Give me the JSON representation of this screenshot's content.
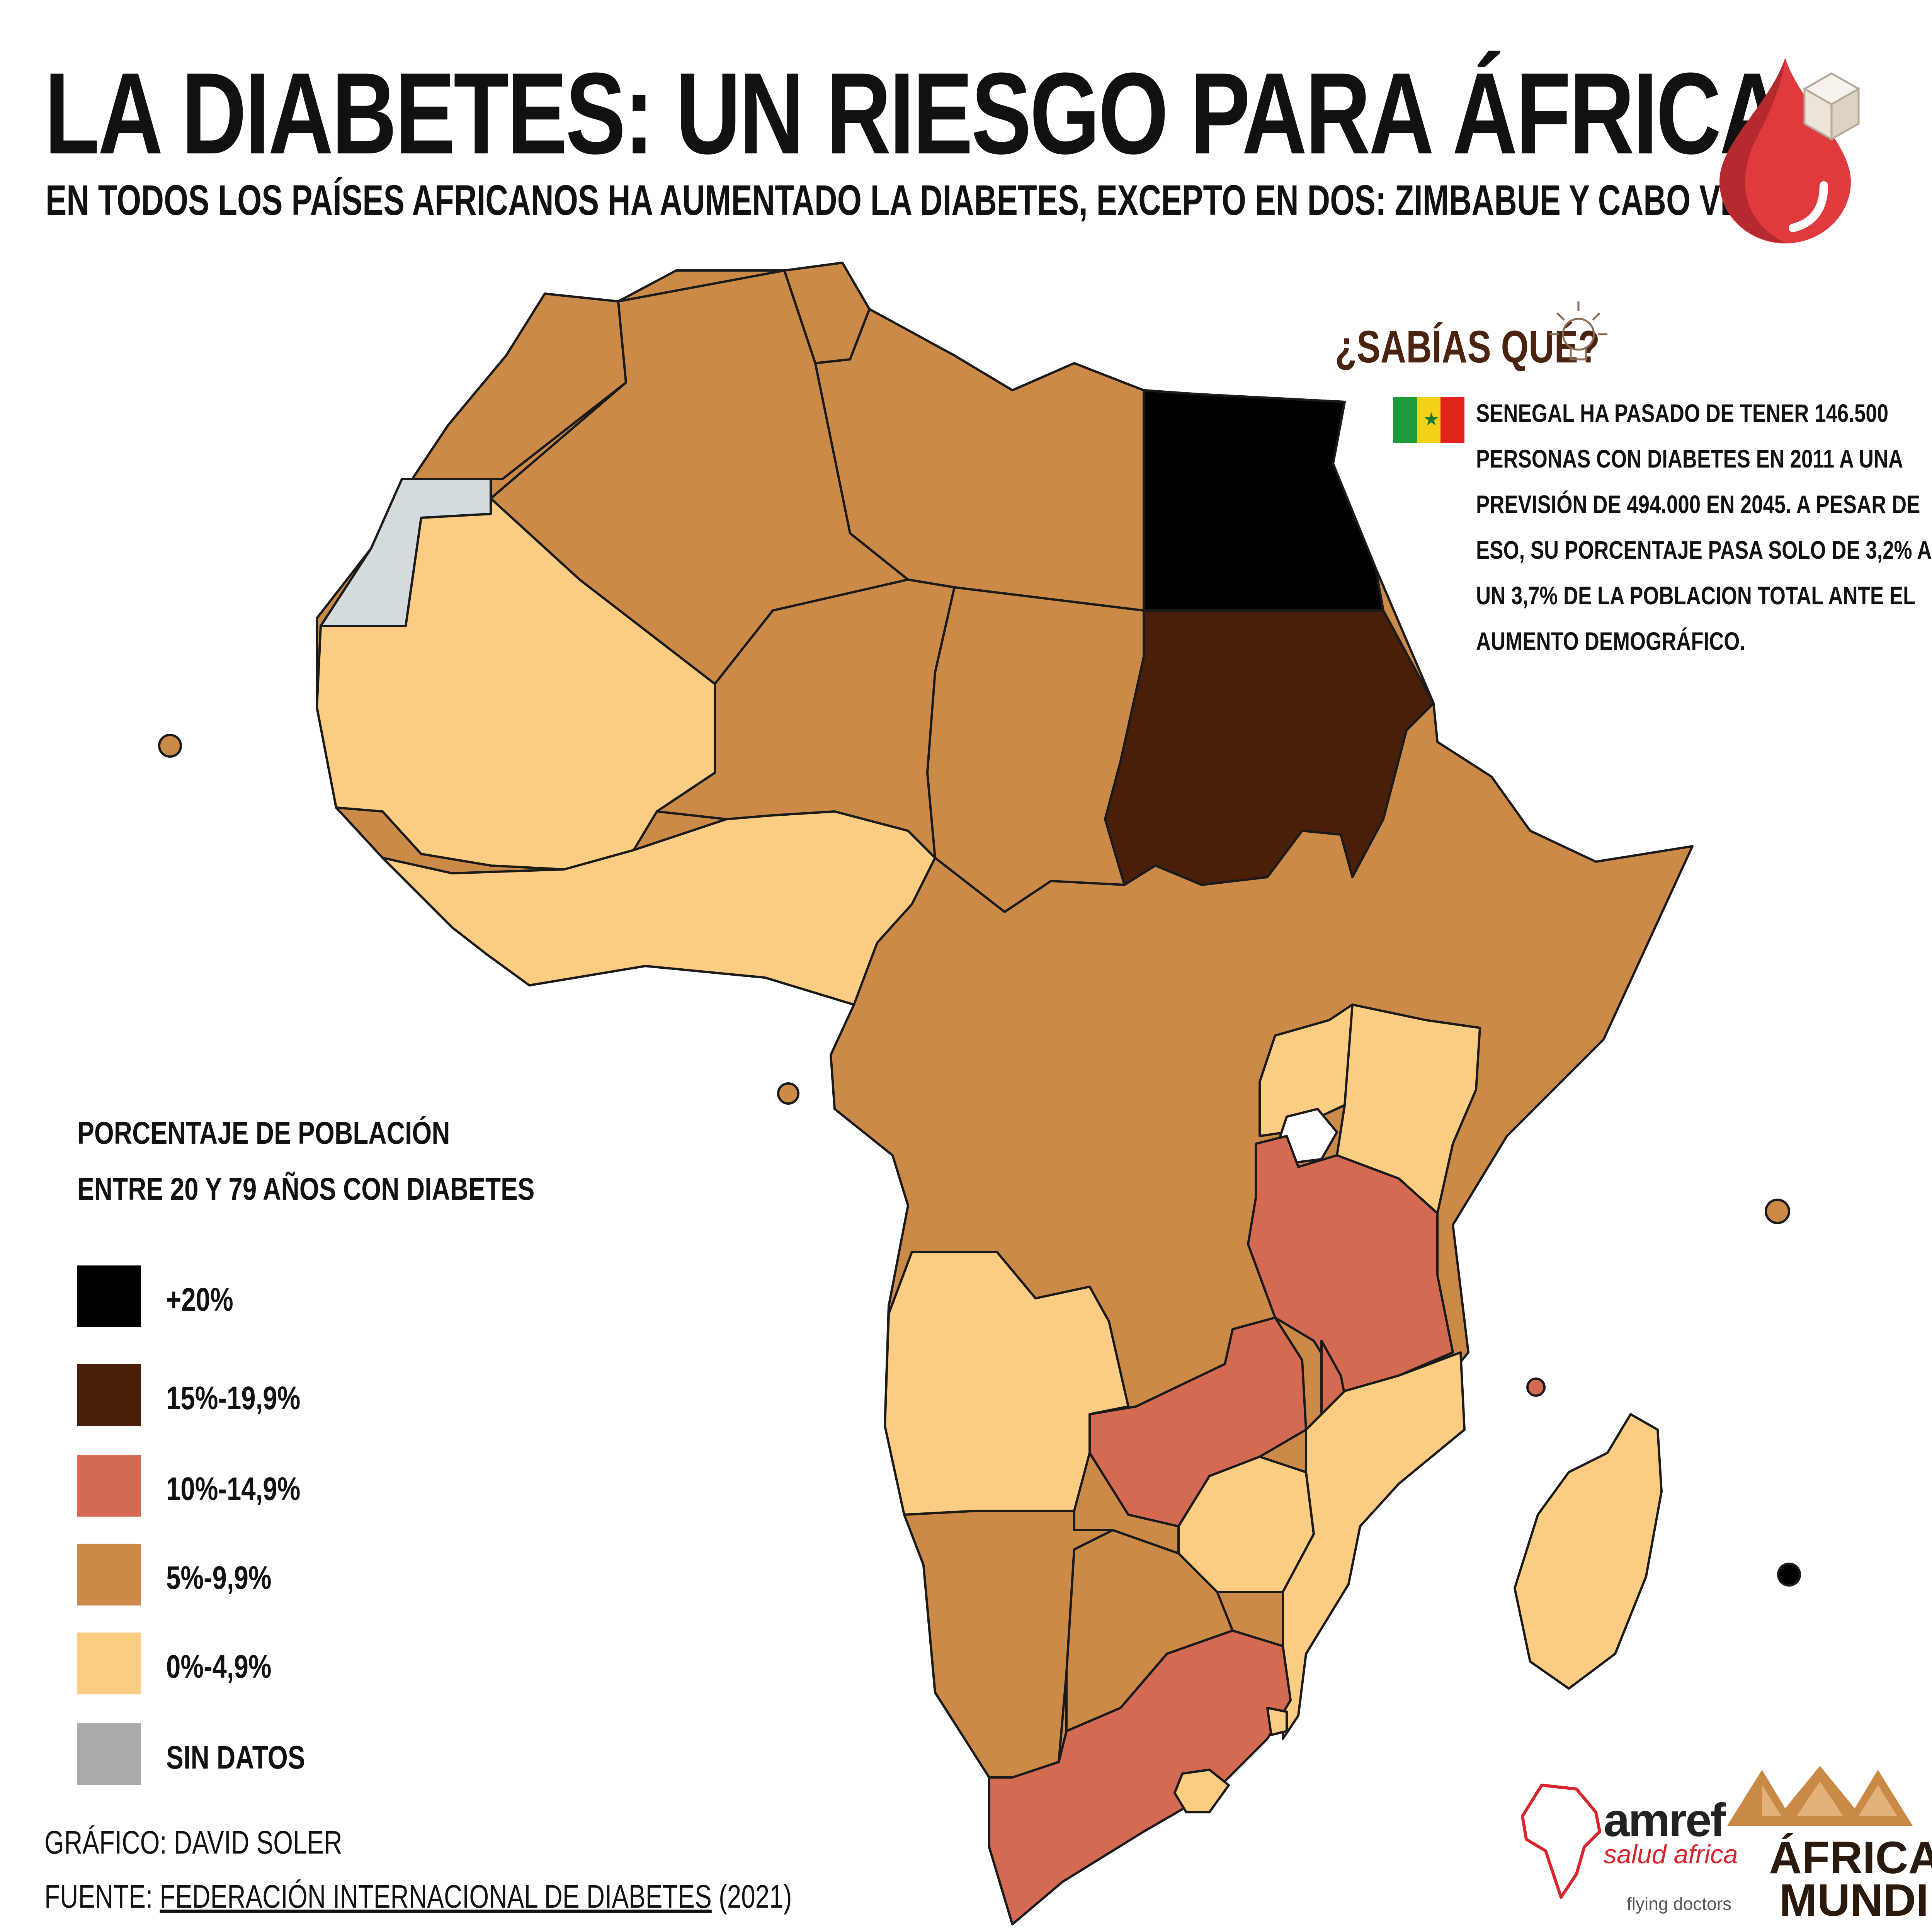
{
  "title": "LA DIABETES: UN RIESGO PARA ÁFRICA",
  "subtitle": "EN TODOS LOS PAÍSES AFRICANOS HA AUMENTADO LA DIABETES, EXCEPTO EN DOS: ZIMBABUE Y CABO VERDE",
  "fact": {
    "heading": "¿SABÍAS QUÉ?",
    "lines": [
      "SENEGAL HA PASADO DE TENER 146.500",
      "PERSONAS CON DIABETES EN 2011 A UNA",
      "PREVISIÓN DE 494.000 EN 2045. A PESAR DE",
      "ESO, SU PORCENTAJE PASA SOLO DE 3,2% A",
      "UN 3,7% DE LA POBLACION TOTAL ANTE EL",
      "AUMENTO DEMOGRÁFICO."
    ]
  },
  "legend": {
    "title_line1": "PORCENTAJE DE POBLACIÓN",
    "title_line2": "ENTRE 20 Y 79 AÑOS CON DIABETES",
    "items": [
      {
        "label": "+20%",
        "color": "#000000"
      },
      {
        "label": "15%-19,9%",
        "color": "#4a1f0a"
      },
      {
        "label": "10%-14,9%",
        "color": "#d46a52"
      },
      {
        "label": "5%-9,9%",
        "color": "#cc8a49"
      },
      {
        "label": "0%-4,9%",
        "color": "#fccc82"
      },
      {
        "label": "SIN DATOS",
        "color": "#aaaaaa"
      }
    ]
  },
  "credits": {
    "graphic": "GRÁFICO: DAVID SOLER",
    "source_prefix": "FUENTE: ",
    "source_link": "FEDERACIÓN INTERNACIONAL DE DIABETES",
    "source_suffix": " (2021)"
  },
  "logos": {
    "amref_word": "amref",
    "amref_sub": "salud africa",
    "amref_tag": "flying doctors",
    "africa_mundi_1": "ÁFRICA",
    "africa_mundi_2": "MUNDI"
  },
  "colors": {
    "plus20": "#000000",
    "c15": "#4a1f0a",
    "c10": "#d46a52",
    "c5": "#cc8a49",
    "c0": "#fccc82",
    "nodata": "#d3dbde",
    "drop": "#e03a3e",
    "heading_brown": "#4a2410"
  },
  "map_regions": [
    {
      "region": "Egipto",
      "class": "+20%"
    },
    {
      "region": "Sudán",
      "class": "15%-19,9%"
    },
    {
      "region": "Tanzania",
      "class": "10%-14,9%"
    },
    {
      "region": "Zambia",
      "class": "10%-14,9%"
    },
    {
      "region": "Sudáfrica",
      "class": "10%-14,9%"
    },
    {
      "region": "Malawi",
      "class": "10%-14,9%"
    },
    {
      "region": "Seychelles",
      "class": "10%-14,9%"
    },
    {
      "region": "Mauricio",
      "class": "+20%"
    },
    {
      "region": "Sáhara Occidental",
      "class": "SIN DATOS"
    }
  ]
}
